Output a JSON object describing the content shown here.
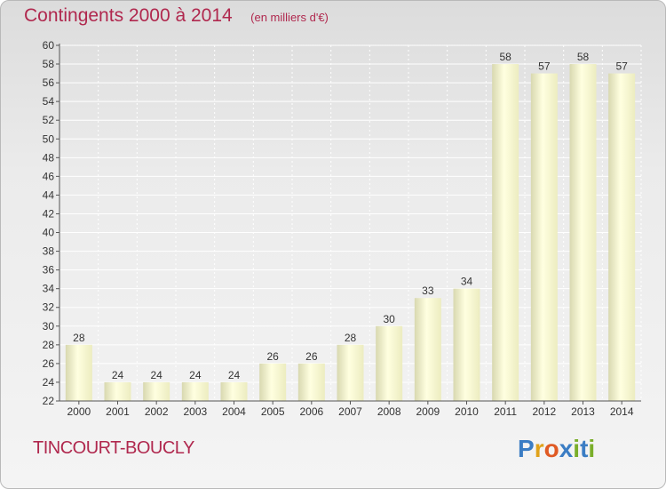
{
  "header": {
    "title": "Contingents 2000 à 2014",
    "subtitle": "(en milliers d'€)"
  },
  "footer": {
    "town": "TINCOURT-BOUCLY",
    "logo_letters": [
      "P",
      "r",
      "o",
      "x",
      "i",
      "t",
      "i"
    ],
    "logo_colors": [
      "#3b7dc4",
      "#e0a21a",
      "#e05a24",
      "#3b7dc4",
      "#7aae2a",
      "#3b7dc4",
      "#7aae2a"
    ]
  },
  "chart_data": {
    "type": "bar",
    "categories": [
      "2000",
      "2001",
      "2002",
      "2003",
      "2004",
      "2005",
      "2006",
      "2007",
      "2008",
      "2009",
      "2010",
      "2011",
      "2012",
      "2013",
      "2014"
    ],
    "values": [
      28,
      24,
      24,
      24,
      24,
      26,
      26,
      28,
      30,
      33,
      34,
      58,
      57,
      58,
      57
    ],
    "ylim": [
      22,
      60
    ],
    "yticks": [
      22,
      24,
      26,
      28,
      30,
      32,
      34,
      36,
      38,
      40,
      42,
      44,
      46,
      48,
      50,
      52,
      54,
      56,
      58,
      60
    ],
    "grid": true,
    "bar_color": "#f7f7d0",
    "title_color": "#b0284e"
  }
}
